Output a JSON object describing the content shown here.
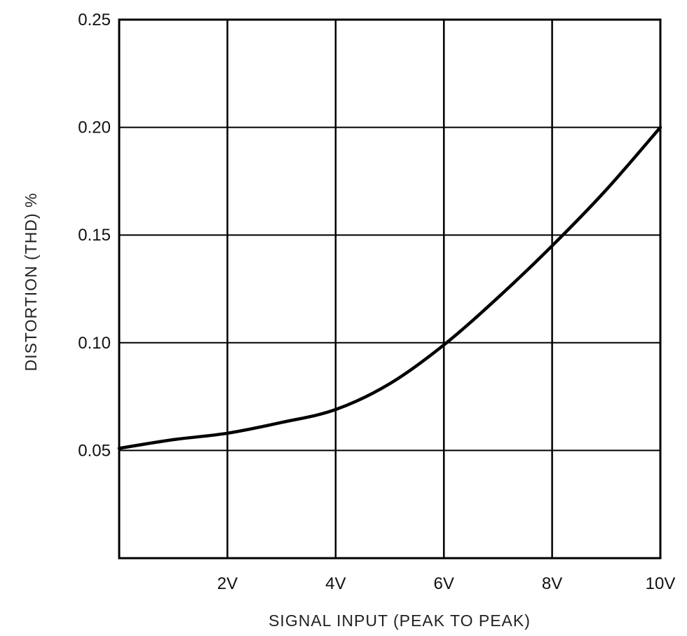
{
  "chart_data": {
    "type": "line",
    "title": "",
    "xlabel": "SIGNAL INPUT (PEAK TO PEAK)",
    "ylabel": "DISTORTION (THD) %",
    "xlim": [
      0,
      10
    ],
    "ylim": [
      0,
      0.25
    ],
    "x_ticks": [
      2,
      4,
      6,
      8,
      10
    ],
    "x_tick_labels": [
      "2V",
      "4V",
      "6V",
      "8V",
      "10V"
    ],
    "y_ticks": [
      0.05,
      0.1,
      0.15,
      0.2,
      0.25
    ],
    "y_tick_labels": [
      "0.05",
      "0.10",
      "0.15",
      "0.20",
      "0.25"
    ],
    "grid": true,
    "series": [
      {
        "x": [
          0,
          1,
          2,
          3,
          4,
          5,
          6,
          7,
          8,
          9,
          10
        ],
        "y": [
          0.051,
          0.055,
          0.058,
          0.063,
          0.069,
          0.081,
          0.099,
          0.121,
          0.145,
          0.171,
          0.2
        ]
      }
    ]
  }
}
